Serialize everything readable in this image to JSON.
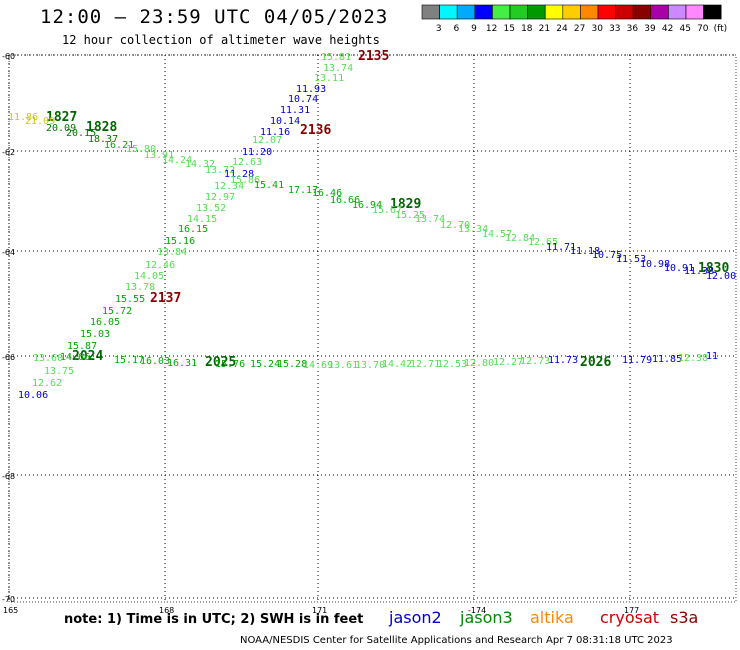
{
  "header": {
    "title": "12:00 – 23:59 UTC 04/05/2023",
    "subtitle": "12 hour collection of altimeter wave heights"
  },
  "legend": {
    "colors": [
      "#808080",
      "#00f5ff",
      "#00aaff",
      "#0000ff",
      "#44ee44",
      "#22cc22",
      "#009900",
      "#ffff00",
      "#ffcc00",
      "#ff8800",
      "#ff0000",
      "#cc0000",
      "#880000",
      "#aa00aa",
      "#cc88ff",
      "#ff88ff",
      "#000000"
    ],
    "labels": [
      "3",
      "6",
      "9",
      "12",
      "15",
      "18",
      "21",
      "24",
      "27",
      "30",
      "33",
      "36",
      "39",
      "42",
      "45",
      "70",
      "(ft)"
    ]
  },
  "lat_labels": [
    "-60",
    "-62",
    "-64",
    "-66",
    "-68",
    "-70"
  ],
  "lon_labels": [
    "165",
    "168",
    "171",
    "-174",
    "177"
  ],
  "satellites": [
    {
      "name": "jason2",
      "color": "#0000cc"
    },
    {
      "name": "jason3",
      "color": "#008800"
    },
    {
      "name": "altika",
      "color": "#ff8800"
    },
    {
      "name": "cryosat",
      "color": "#cc0000"
    },
    {
      "name": "s3a",
      "color": "#880000"
    }
  ],
  "footer": {
    "note": "note:  1) Time is in UTC;  2) SWH is in feet",
    "credit": "NOAA/NESDIS Center for Satellite Applications and Research    Apr  7 08:31:18 UTC 2023"
  },
  "track_times": [
    {
      "text": "1827",
      "color": "#006600"
    },
    {
      "text": "1828",
      "color": "#006600"
    },
    {
      "text": "1829",
      "color": "#006600"
    },
    {
      "text": "1830",
      "color": "#006600"
    },
    {
      "text": "2024",
      "color": "#006600"
    },
    {
      "text": "2025",
      "color": "#006600"
    },
    {
      "text": "2026",
      "color": "#006600"
    },
    {
      "text": "2135",
      "color": "#880000"
    },
    {
      "text": "2136",
      "color": "#880000"
    },
    {
      "text": "2137",
      "color": "#880000"
    }
  ],
  "swh_values": [
    {
      "text": "11.86",
      "color": "#cccc00"
    },
    {
      "text": "21.09",
      "color": "#cccc00"
    },
    {
      "text": "20.09",
      "color": "#007700"
    },
    {
      "text": "20.15",
      "color": "#007700"
    },
    {
      "text": "18.37",
      "color": "#007700"
    },
    {
      "text": "16.21",
      "color": "#00aa00"
    },
    {
      "text": "15.80",
      "color": "#55dd55"
    },
    {
      "text": "13.91",
      "color": "#55dd55"
    },
    {
      "text": "14.24",
      "color": "#55dd55"
    },
    {
      "text": "14.32",
      "color": "#55dd55"
    },
    {
      "text": "13.72",
      "color": "#55dd55"
    },
    {
      "text": "12.63",
      "color": "#55dd55"
    },
    {
      "text": "11.28",
      "color": "#0000cc"
    },
    {
      "text": "15.86",
      "color": "#55dd55"
    },
    {
      "text": "15.41",
      "color": "#00aa00"
    },
    {
      "text": "17.17",
      "color": "#00aa00"
    },
    {
      "text": "16.46",
      "color": "#00aa00"
    },
    {
      "text": "16.66",
      "color": "#00aa00"
    },
    {
      "text": "16.94",
      "color": "#00aa00"
    },
    {
      "text": "15.67",
      "color": "#55dd55"
    },
    {
      "text": "15.25",
      "color": "#55dd55"
    },
    {
      "text": "13.74",
      "color": "#55dd55"
    },
    {
      "text": "12.70",
      "color": "#55dd55"
    },
    {
      "text": "13.34",
      "color": "#55dd55"
    },
    {
      "text": "14.57",
      "color": "#55dd55"
    },
    {
      "text": "12.84",
      "color": "#55dd55"
    },
    {
      "text": "12.65",
      "color": "#55dd55"
    },
    {
      "text": "11.71",
      "color": "#0000cc"
    },
    {
      "text": "11.18",
      "color": "#0000cc"
    },
    {
      "text": "10.75",
      "color": "#0000cc"
    },
    {
      "text": "11.53",
      "color": "#0000cc"
    },
    {
      "text": "10.98",
      "color": "#0000cc"
    },
    {
      "text": "10.91",
      "color": "#0000cc"
    },
    {
      "text": "11.38",
      "color": "#0000cc"
    },
    {
      "text": "12.00",
      "color": "#0000cc"
    },
    {
      "text": "15.81",
      "color": "#55dd55"
    },
    {
      "text": "13.74",
      "color": "#55dd55"
    },
    {
      "text": "13.11",
      "color": "#55dd55"
    },
    {
      "text": "11.93",
      "color": "#0000cc"
    },
    {
      "text": "10.74",
      "color": "#0000cc"
    },
    {
      "text": "11.31",
      "color": "#0000cc"
    },
    {
      "text": "10.14",
      "color": "#0000cc"
    },
    {
      "text": "11.16",
      "color": "#0000cc"
    },
    {
      "text": "11.20",
      "color": "#0000cc"
    },
    {
      "text": "12.07",
      "color": "#55dd55"
    },
    {
      "text": "12.34",
      "color": "#55dd55"
    },
    {
      "text": "12.97",
      "color": "#55dd55"
    },
    {
      "text": "13.52",
      "color": "#55dd55"
    },
    {
      "text": "14.15",
      "color": "#55dd55"
    },
    {
      "text": "16.15",
      "color": "#00aa00"
    },
    {
      "text": "15.16",
      "color": "#00aa00"
    },
    {
      "text": "13.84",
      "color": "#55dd55"
    },
    {
      "text": "12.46",
      "color": "#55dd55"
    },
    {
      "text": "14.05",
      "color": "#55dd55"
    },
    {
      "text": "13.78",
      "color": "#55dd55"
    },
    {
      "text": "15.55",
      "color": "#00aa00"
    },
    {
      "text": "15.72",
      "color": "#00aa00"
    },
    {
      "text": "16.05",
      "color": "#00aa00"
    },
    {
      "text": "15.03",
      "color": "#00aa00"
    },
    {
      "text": "15.87",
      "color": "#00aa00"
    },
    {
      "text": "14.66",
      "color": "#00aa00"
    },
    {
      "text": "13.75",
      "color": "#55dd55"
    },
    {
      "text": "12.62",
      "color": "#55dd55"
    },
    {
      "text": "10.06",
      "color": "#0000cc"
    },
    {
      "text": "13.60",
      "color": "#55dd55"
    },
    {
      "text": "15.17",
      "color": "#00aa00"
    },
    {
      "text": "16.03",
      "color": "#00aa00"
    },
    {
      "text": "16.31",
      "color": "#00aa00"
    },
    {
      "text": "15.76",
      "color": "#00aa00"
    },
    {
      "text": "15.24",
      "color": "#00aa00"
    },
    {
      "text": "15.28",
      "color": "#00aa00"
    },
    {
      "text": "14.69",
      "color": "#55dd55"
    },
    {
      "text": "13.61",
      "color": "#55dd55"
    },
    {
      "text": "13.70",
      "color": "#55dd55"
    },
    {
      "text": "14.42",
      "color": "#55dd55"
    },
    {
      "text": "12.71",
      "color": "#55dd55"
    },
    {
      "text": "12.53",
      "color": "#55dd55"
    },
    {
      "text": "12.80",
      "color": "#55dd55"
    },
    {
      "text": "12.27",
      "color": "#55dd55"
    },
    {
      "text": "12.73",
      "color": "#55dd55"
    },
    {
      "text": "11.73",
      "color": "#0000cc"
    },
    {
      "text": "11.79",
      "color": "#0000cc"
    },
    {
      "text": "11.85",
      "color": "#0000cc"
    },
    {
      "text": "12.38",
      "color": "#55dd55"
    },
    {
      "text": "11",
      "color": "#0000cc"
    }
  ]
}
